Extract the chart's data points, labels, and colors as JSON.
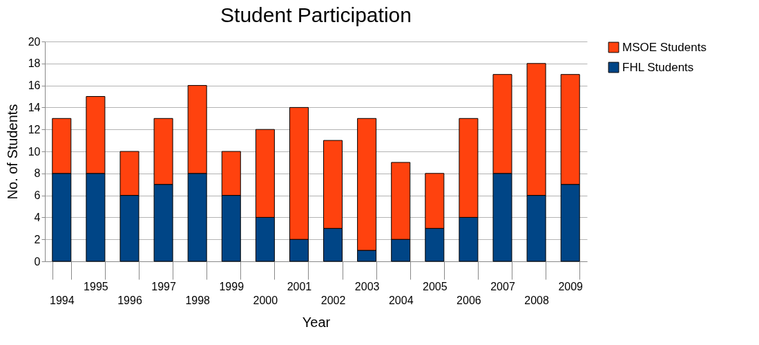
{
  "chart_data": {
    "type": "bar",
    "title": "Student Participation",
    "xlabel": "Year",
    "ylabel": "No. of Students",
    "categories": [
      "1994",
      "1995",
      "1996",
      "1997",
      "1998",
      "1999",
      "2000",
      "2001",
      "2002",
      "2003",
      "2004",
      "2005",
      "2006",
      "2007",
      "2008",
      "2009"
    ],
    "stacked": true,
    "ylim": [
      0,
      20
    ],
    "yticks": [
      0,
      2,
      4,
      6,
      8,
      10,
      12,
      14,
      16,
      18,
      20
    ],
    "grid": "y",
    "legend": "right",
    "series": [
      {
        "name": "FHL Students",
        "color": "#004586",
        "values": [
          8,
          8,
          6,
          7,
          8,
          6,
          4,
          2,
          3,
          1,
          2,
          3,
          4,
          8,
          6,
          7
        ]
      },
      {
        "name": "MSOE Students",
        "color": "#ff420e",
        "values": [
          5,
          7,
          4,
          6,
          8,
          4,
          8,
          12,
          8,
          12,
          7,
          5,
          9,
          9,
          12,
          10
        ]
      }
    ]
  }
}
